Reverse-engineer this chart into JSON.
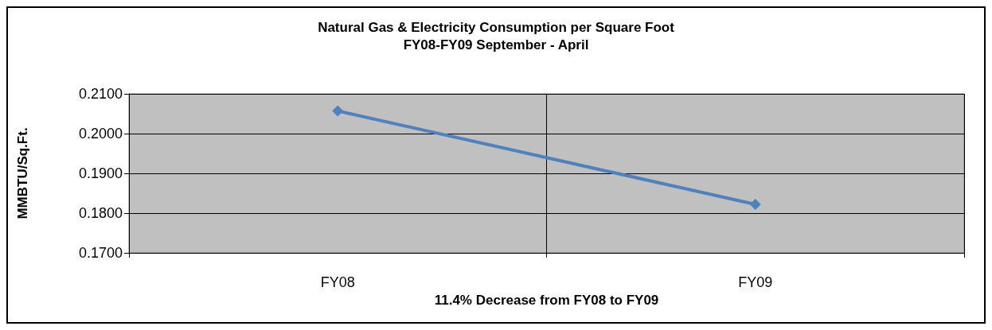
{
  "chart_data": {
    "type": "line",
    "title": "Natural Gas & Electricity Consumption per Square Foot\nFY08-FY09 September - April",
    "xlabel": "11.4% Decrease from FY08 to FY09",
    "ylabel": "MMBTU/Sq.Ft.",
    "categories": [
      "FY08",
      "FY09"
    ],
    "series": [
      {
        "color": "#4f81bd",
        "values": [
          0.2057,
          0.1822
        ]
      }
    ],
    "ylim": [
      0.17,
      0.21
    ],
    "yticks": [
      {
        "value": 0.17,
        "label": "0.1700"
      },
      {
        "value": 0.18,
        "label": "0.1800"
      },
      {
        "value": 0.19,
        "label": "0.1900"
      },
      {
        "value": 0.2,
        "label": "0.2000"
      },
      {
        "value": 0.21,
        "label": "0.2100"
      }
    ],
    "grid": true,
    "marker": "diamond",
    "line_style": "solid"
  }
}
